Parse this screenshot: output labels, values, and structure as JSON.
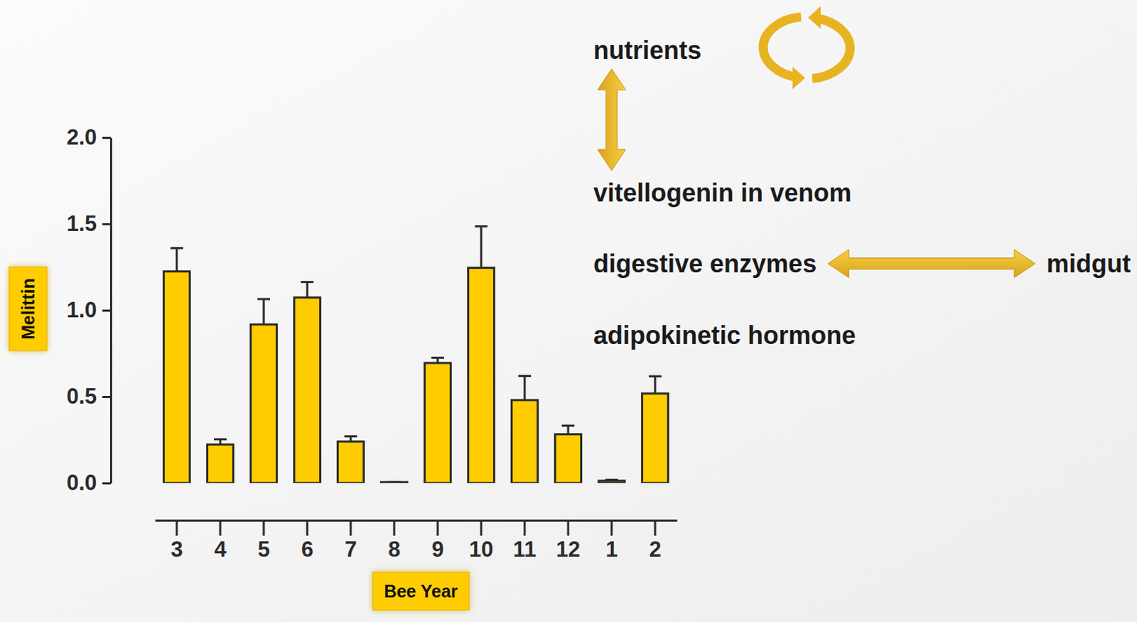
{
  "chart_data": {
    "type": "bar",
    "categories": [
      "3",
      "4",
      "5",
      "6",
      "7",
      "8",
      "9",
      "10",
      "11",
      "12",
      "1",
      "2"
    ],
    "values": [
      1.225,
      0.223,
      0.918,
      1.074,
      0.24,
      0.005,
      0.695,
      1.246,
      0.48,
      0.282,
      0.013,
      0.518
    ],
    "errors": [
      0.135,
      0.03,
      0.147,
      0.09,
      0.03,
      0,
      0.03,
      0.24,
      0.14,
      0.05,
      0.005,
      0.1
    ],
    "color": "#ffcc00",
    "ylim": [
      0,
      2
    ],
    "yticks": [
      {
        "value": 0,
        "label": "0.0"
      },
      0.5,
      {
        "value": 1,
        "label": "1.0"
      },
      1.5,
      {
        "value": 2,
        "label": "2.0"
      }
    ],
    "ylabel": "Melittin",
    "xlabel": "Bee Year",
    "annotations": [
      "nutrients",
      "vitellogenin in venom",
      "digestive enzymes",
      "midgut",
      "adipokinetic hormone"
    ]
  }
}
